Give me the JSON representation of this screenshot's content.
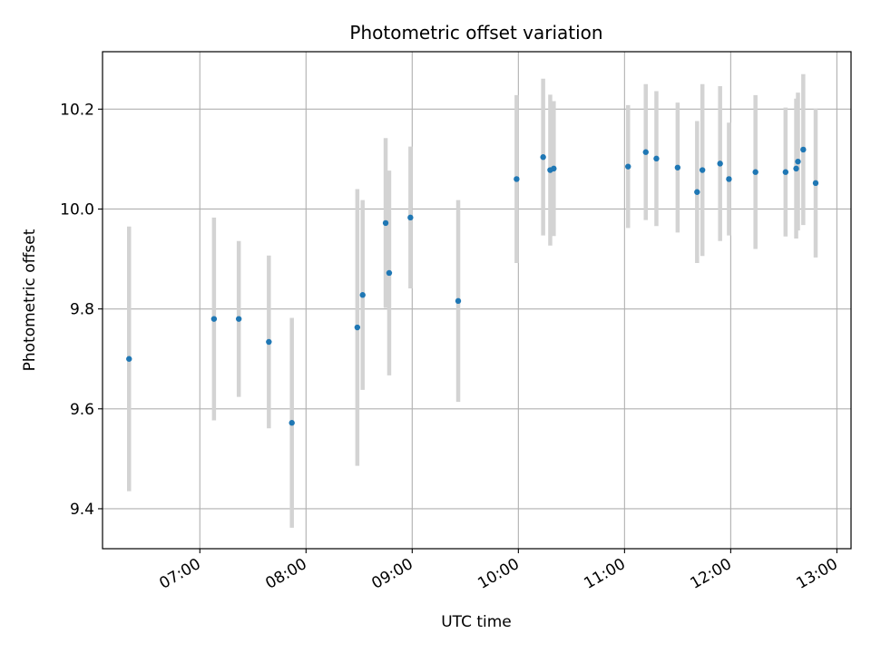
{
  "chart_data": {
    "type": "scatter",
    "title": "Photometric offset variation",
    "xlabel": "UTC time",
    "ylabel": "Photometric offset",
    "x_ticks": [
      "07:00",
      "08:00",
      "09:00",
      "10:00",
      "11:00",
      "12:00",
      "13:00"
    ],
    "y_ticks": [
      9.4,
      9.6,
      9.8,
      10.0,
      10.2
    ],
    "y_tick_labels": [
      "9.4",
      "9.6",
      "9.8",
      "10.0",
      "10.2"
    ],
    "xlim": [
      "06:05",
      "13:08"
    ],
    "ylim": [
      9.32,
      10.315
    ],
    "grid": true,
    "colors": {
      "point": "#1f77b4",
      "errorbar": "#d3d3d3",
      "grid": "#b0b0b0"
    },
    "series": [
      {
        "points": [
          {
            "x": "06:20",
            "y": 9.7,
            "err": 0.265
          },
          {
            "x": "07:08",
            "y": 9.78,
            "err": 0.203
          },
          {
            "x": "07:22",
            "y": 9.78,
            "err": 0.156
          },
          {
            "x": "07:39",
            "y": 9.734,
            "err": 0.173
          },
          {
            "x": "07:52",
            "y": 9.572,
            "err": 0.21
          },
          {
            "x": "08:29",
            "y": 9.763,
            "err": 0.277
          },
          {
            "x": "08:32",
            "y": 9.828,
            "err": 0.19
          },
          {
            "x": "08:45",
            "y": 9.972,
            "err": 0.17
          },
          {
            "x": "08:47",
            "y": 9.872,
            "err": 0.205
          },
          {
            "x": "08:59",
            "y": 9.983,
            "err": 0.142
          },
          {
            "x": "09:26",
            "y": 9.816,
            "err": 0.202
          },
          {
            "x": "09:59",
            "y": 10.06,
            "err": 0.168
          },
          {
            "x": "10:14",
            "y": 10.104,
            "err": 0.157
          },
          {
            "x": "10:18",
            "y": 10.078,
            "err": 0.151
          },
          {
            "x": "10:20",
            "y": 10.081,
            "err": 0.135
          },
          {
            "x": "11:02",
            "y": 10.085,
            "err": 0.123
          },
          {
            "x": "11:12",
            "y": 10.114,
            "err": 0.136
          },
          {
            "x": "11:18",
            "y": 10.101,
            "err": 0.135
          },
          {
            "x": "11:30",
            "y": 10.083,
            "err": 0.13
          },
          {
            "x": "11:41",
            "y": 10.034,
            "err": 0.142
          },
          {
            "x": "11:44",
            "y": 10.078,
            "err": 0.172
          },
          {
            "x": "11:54",
            "y": 10.091,
            "err": 0.155
          },
          {
            "x": "11:59",
            "y": 10.06,
            "err": 0.113
          },
          {
            "x": "12:14",
            "y": 10.074,
            "err": 0.154
          },
          {
            "x": "12:31",
            "y": 10.074,
            "err": 0.129
          },
          {
            "x": "12:37",
            "y": 10.081,
            "err": 0.14
          },
          {
            "x": "12:38",
            "y": 10.095,
            "err": 0.138
          },
          {
            "x": "12:41",
            "y": 10.119,
            "err": 0.151
          },
          {
            "x": "12:48",
            "y": 10.052,
            "err": 0.149
          }
        ]
      }
    ]
  }
}
